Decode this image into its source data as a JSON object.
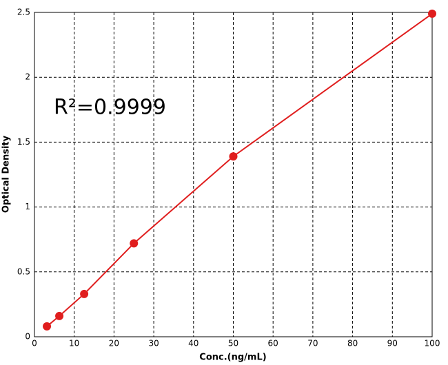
{
  "chart_data": {
    "type": "line",
    "annotation": "R²=0.9999",
    "x_label": "Conc.(ng/mL)",
    "y_label": "Optical Density",
    "x": [
      3.125,
      6.25,
      12.5,
      25,
      50,
      100
    ],
    "series": [
      {
        "color": "#e01e1e",
        "values": [
          0.08,
          0.16,
          0.33,
          0.72,
          1.39,
          2.49
        ]
      }
    ],
    "xlim": [
      0,
      100
    ],
    "xticks": [
      0,
      10,
      20,
      30,
      40,
      50,
      60,
      70,
      80,
      90,
      100
    ],
    "ylim": [
      0,
      2.5
    ],
    "yticks": [
      0,
      0.5,
      1,
      1.5,
      2,
      2.5
    ],
    "grid": true
  }
}
